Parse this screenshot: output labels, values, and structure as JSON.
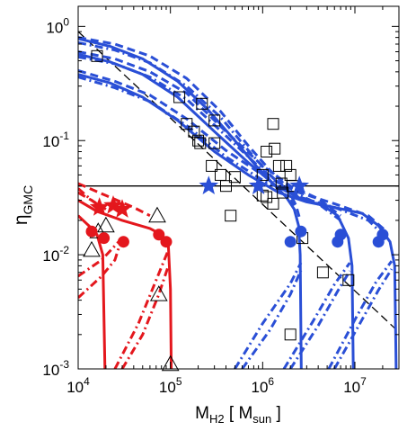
{
  "chart_data": {
    "type": "scatter",
    "title": "",
    "xlabel": {
      "main": "M",
      "sub": "H2",
      "bracket_open": " [ M",
      "unit_sub": "sun",
      "bracket_close": " ]"
    },
    "ylabel": {
      "main": "η",
      "sub": "GMC"
    },
    "xscale": "log",
    "yscale": "log",
    "xlim": [
      10000,
      30000000
    ],
    "ylim": [
      0.001,
      1.5
    ],
    "grid": false,
    "legend": "none",
    "xticks": [
      {
        "value": 10000,
        "base": "10",
        "exp": "4"
      },
      {
        "value": 100000,
        "base": "10",
        "exp": "5"
      },
      {
        "value": 1000000,
        "base": "10",
        "exp": "6"
      },
      {
        "value": 10000000,
        "base": "10",
        "exp": "7"
      }
    ],
    "yticks": [
      {
        "value": 0.001,
        "base": "10",
        "exp": "-3"
      },
      {
        "value": 0.01,
        "base": "10",
        "exp": "-2"
      },
      {
        "value": 0.1,
        "base": "10",
        "exp": "-1"
      },
      {
        "value": 1,
        "base": "10",
        "exp": "0"
      }
    ],
    "colors": {
      "blue": "#2a4fd6",
      "red": "#e4171d",
      "black": "#000000"
    },
    "reference_lines": [
      {
        "kind": "horizontal",
        "y": 0.04,
        "style": "solid",
        "color": "black"
      },
      {
        "kind": "line",
        "points": [
          [
            10000,
            0.9
          ],
          [
            30000000,
            0.0021
          ]
        ],
        "style": "dashed",
        "color": "black"
      }
    ],
    "series": [
      {
        "color": "blue",
        "style": "solid",
        "points": [
          [
            10000,
            0.78
          ],
          [
            22000,
            0.67
          ],
          [
            50000,
            0.52
          ],
          [
            120000,
            0.33
          ],
          [
            250000,
            0.19
          ],
          [
            500000,
            0.1
          ],
          [
            850000,
            0.06
          ],
          [
            1300000,
            0.042
          ],
          [
            1800000,
            0.032
          ],
          [
            2200000,
            0.025
          ],
          [
            2450000,
            0.018
          ],
          [
            2550000,
            0.01
          ],
          [
            2620000,
            0.001
          ]
        ]
      },
      {
        "color": "blue",
        "style": "dashed",
        "points": [
          [
            10000,
            0.8
          ],
          [
            25000,
            0.7
          ],
          [
            60000,
            0.55
          ],
          [
            150000,
            0.35
          ],
          [
            350000,
            0.18
          ],
          [
            700000,
            0.09
          ],
          [
            1200000,
            0.055
          ],
          [
            1800000,
            0.04
          ],
          [
            2300000,
            0.027
          ],
          [
            2550000,
            0.02
          ]
        ]
      },
      {
        "color": "blue",
        "style": "dashdot",
        "points": [
          [
            10000,
            0.72
          ],
          [
            25000,
            0.62
          ],
          [
            60000,
            0.48
          ],
          [
            150000,
            0.3
          ],
          [
            350000,
            0.16
          ],
          [
            700000,
            0.082
          ],
          [
            1200000,
            0.05
          ],
          [
            1800000,
            0.037
          ],
          [
            2200000,
            0.027
          ]
        ]
      },
      {
        "color": "blue",
        "style": "solid",
        "points": [
          [
            10000,
            0.57
          ],
          [
            22000,
            0.49
          ],
          [
            50000,
            0.38
          ],
          [
            120000,
            0.24
          ],
          [
            300000,
            0.12
          ],
          [
            700000,
            0.064
          ],
          [
            1400000,
            0.04
          ],
          [
            2600000,
            0.031
          ],
          [
            4500000,
            0.027
          ],
          [
            6500000,
            0.022
          ],
          [
            8500000,
            0.014
          ],
          [
            9300000,
            0.008
          ],
          [
            9600000,
            0.001
          ]
        ]
      },
      {
        "color": "blue",
        "style": "dashed",
        "points": [
          [
            10000,
            0.6
          ],
          [
            25000,
            0.52
          ],
          [
            60000,
            0.4
          ],
          [
            150000,
            0.26
          ],
          [
            400000,
            0.12
          ],
          [
            1000000,
            0.06
          ],
          [
            2000000,
            0.04
          ],
          [
            4000000,
            0.031
          ],
          [
            7000000,
            0.022
          ]
        ]
      },
      {
        "color": "blue",
        "style": "dashdot",
        "points": [
          [
            10000,
            0.54
          ],
          [
            25000,
            0.47
          ],
          [
            60000,
            0.36
          ],
          [
            150000,
            0.23
          ],
          [
            400000,
            0.11
          ],
          [
            1000000,
            0.055
          ],
          [
            2000000,
            0.036
          ],
          [
            4000000,
            0.028
          ],
          [
            7000000,
            0.02
          ]
        ]
      },
      {
        "color": "blue",
        "style": "solid",
        "points": [
          [
            10000,
            0.38
          ],
          [
            22000,
            0.32
          ],
          [
            50000,
            0.24
          ],
          [
            120000,
            0.15
          ],
          [
            300000,
            0.08
          ],
          [
            700000,
            0.05
          ],
          [
            1500000,
            0.035
          ],
          [
            3000000,
            0.029
          ],
          [
            6000000,
            0.026
          ],
          [
            12000000,
            0.023
          ],
          [
            18000000,
            0.018
          ],
          [
            24000000,
            0.013
          ],
          [
            27000000,
            0.008
          ],
          [
            28000000,
            0.001
          ]
        ]
      },
      {
        "color": "blue",
        "style": "dashed",
        "points": [
          [
            10000,
            0.41
          ],
          [
            25000,
            0.33
          ],
          [
            60000,
            0.25
          ],
          [
            150000,
            0.155
          ],
          [
            400000,
            0.082
          ],
          [
            1000000,
            0.05
          ],
          [
            2500000,
            0.035
          ],
          [
            6000000,
            0.028
          ],
          [
            14000000,
            0.022
          ],
          [
            22000000,
            0.016
          ]
        ]
      },
      {
        "color": "blue",
        "style": "dashdot",
        "points": [
          [
            10000,
            0.36
          ],
          [
            25000,
            0.29
          ],
          [
            60000,
            0.22
          ],
          [
            150000,
            0.135
          ],
          [
            400000,
            0.072
          ],
          [
            1000000,
            0.045
          ],
          [
            2500000,
            0.032
          ],
          [
            6000000,
            0.026
          ],
          [
            14000000,
            0.02
          ],
          [
            22000000,
            0.014
          ]
        ]
      },
      {
        "color": "blue",
        "style": "dashdot",
        "points": [
          [
            600000,
            0.001
          ],
          [
            1200000,
            0.0022
          ],
          [
            2000000,
            0.0045
          ],
          [
            2600000,
            0.0073
          ]
        ]
      },
      {
        "color": "blue",
        "style": "dashdot",
        "points": [
          [
            500000,
            0.001
          ],
          [
            1000000,
            0.0025
          ],
          [
            2000000,
            0.0056
          ],
          [
            2600000,
            0.0085
          ]
        ]
      },
      {
        "color": "blue",
        "style": "dashdot",
        "points": [
          [
            2000000,
            0.001
          ],
          [
            4000000,
            0.0024
          ],
          [
            6500000,
            0.0048
          ],
          [
            8800000,
            0.0072
          ]
        ]
      },
      {
        "color": "blue",
        "style": "dashdot",
        "points": [
          [
            1700000,
            0.001
          ],
          [
            3500000,
            0.0026
          ],
          [
            6000000,
            0.0055
          ],
          [
            8800000,
            0.0085
          ]
        ]
      },
      {
        "color": "blue",
        "style": "dashdot",
        "points": [
          [
            6000000,
            0.001
          ],
          [
            11000000,
            0.0024
          ],
          [
            18000000,
            0.0049
          ],
          [
            25000000,
            0.0075
          ]
        ]
      },
      {
        "color": "blue",
        "style": "dashdot",
        "points": [
          [
            5200000,
            0.001
          ],
          [
            10000000,
            0.0027
          ],
          [
            17000000,
            0.0058
          ],
          [
            25000000,
            0.0088
          ]
        ]
      },
      {
        "color": "red",
        "style": "solid",
        "points": [
          [
            10000,
            0.03
          ],
          [
            16000,
            0.024
          ],
          [
            30000,
            0.02
          ],
          [
            60000,
            0.017
          ],
          [
            80000,
            0.015
          ],
          [
            95000,
            0.012
          ],
          [
            100000,
            0.005
          ],
          [
            102000,
            0.001
          ]
        ]
      },
      {
        "color": "red",
        "style": "solid",
        "points": [
          [
            10000,
            0.022
          ],
          [
            13000,
            0.018
          ],
          [
            16000,
            0.015
          ],
          [
            18500,
            0.01
          ],
          [
            19500,
            0.001
          ]
        ]
      },
      {
        "color": "red",
        "style": "dashed",
        "points": [
          [
            10000,
            0.042
          ],
          [
            20000,
            0.033
          ],
          [
            40000,
            0.026
          ],
          [
            60000,
            0.022
          ]
        ]
      },
      {
        "color": "red",
        "style": "dashed",
        "points": [
          [
            10000,
            0.035
          ],
          [
            14000,
            0.03
          ],
          [
            20000,
            0.025
          ]
        ]
      },
      {
        "color": "red",
        "style": "dashdot",
        "points": [
          [
            10000,
            0.038
          ],
          [
            14000,
            0.03
          ],
          [
            19000,
            0.025
          ]
        ]
      },
      {
        "color": "red",
        "style": "dashdot",
        "points": [
          [
            10000,
            0.0065
          ],
          [
            18000,
            0.009
          ],
          [
            25000,
            0.012
          ],
          [
            30000,
            0.014
          ]
        ]
      },
      {
        "color": "red",
        "style": "dashdot",
        "points": [
          [
            10000,
            0.0042
          ],
          [
            18000,
            0.0065
          ],
          [
            25000,
            0.009
          ],
          [
            28000,
            0.012
          ]
        ]
      },
      {
        "color": "red",
        "style": "dashdot",
        "points": [
          [
            30000,
            0.001
          ],
          [
            50000,
            0.002
          ],
          [
            75000,
            0.0045
          ],
          [
            95000,
            0.008
          ]
        ]
      },
      {
        "color": "red",
        "style": "dashdot",
        "points": [
          [
            25000,
            0.001
          ],
          [
            45000,
            0.0025
          ],
          [
            70000,
            0.006
          ],
          [
            95000,
            0.011
          ]
        ]
      }
    ],
    "markers": [
      {
        "shape": "square",
        "color": "black",
        "filled": false,
        "points": [
          [
            16000,
            0.55
          ],
          [
            125000,
            0.24
          ],
          [
            150000,
            0.14
          ],
          [
            180000,
            0.12
          ],
          [
            200000,
            0.1
          ],
          [
            220000,
            0.21
          ],
          [
            210000,
            0.095
          ],
          [
            300000,
            0.095
          ],
          [
            300000,
            0.15
          ],
          [
            280000,
            0.06
          ],
          [
            350000,
            0.05
          ],
          [
            400000,
            0.04
          ],
          [
            500000,
            0.048
          ],
          [
            1000000,
            0.033
          ],
          [
            1100000,
            0.032
          ],
          [
            1300000,
            0.14
          ],
          [
            1350000,
            0.085
          ],
          [
            1500000,
            0.06
          ],
          [
            1600000,
            0.042
          ],
          [
            1650000,
            0.035
          ],
          [
            1800000,
            0.06
          ],
          [
            2000000,
            0.05
          ],
          [
            2100000,
            0.04
          ],
          [
            1100000,
            0.08
          ],
          [
            1000000,
            0.05
          ],
          [
            450000,
            0.022
          ],
          [
            1300000,
            0.028
          ],
          [
            2700000,
            0.014
          ],
          [
            4500000,
            0.007
          ],
          [
            8500000,
            0.006
          ],
          [
            2000000,
            0.002
          ]
        ]
      },
      {
        "shape": "triangle",
        "color": "black",
        "filled": false,
        "points": [
          [
            14000,
            0.011
          ],
          [
            16500,
            0.016
          ],
          [
            20000,
            0.018
          ],
          [
            72000,
            0.022
          ],
          [
            75000,
            0.0045
          ],
          [
            100000,
            0.0011
          ]
        ]
      },
      {
        "shape": "star",
        "color": "blue",
        "filled": true,
        "points": [
          [
            260000,
            0.04
          ],
          [
            900000,
            0.04
          ],
          [
            2500000,
            0.04
          ]
        ]
      },
      {
        "shape": "star",
        "color": "red",
        "filled": true,
        "points": [
          [
            17000,
            0.026
          ],
          [
            24000,
            0.027
          ],
          [
            30000,
            0.025
          ]
        ]
      },
      {
        "shape": "circle",
        "color": "blue",
        "filled": true,
        "points": [
          [
            2000000,
            0.013
          ],
          [
            2600000,
            0.016
          ],
          [
            6500000,
            0.013
          ],
          [
            7000000,
            0.015
          ],
          [
            18000000,
            0.013
          ],
          [
            20000000,
            0.015
          ]
        ]
      },
      {
        "shape": "circle",
        "color": "red",
        "filled": true,
        "points": [
          [
            14000,
            0.016
          ],
          [
            19000,
            0.014
          ],
          [
            31000,
            0.013
          ],
          [
            75000,
            0.015
          ],
          [
            90000,
            0.013
          ]
        ]
      }
    ]
  }
}
